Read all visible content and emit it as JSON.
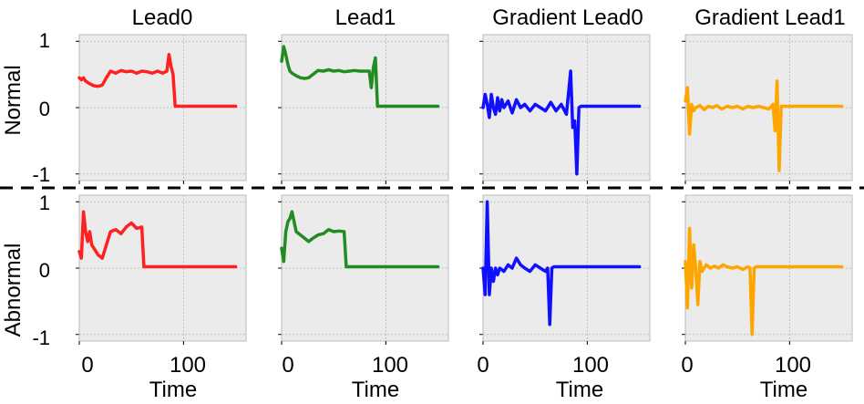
{
  "figure": {
    "col_titles": [
      "Lead0",
      "Lead1",
      "Gradient Lead0",
      "Gradient Lead1"
    ],
    "row_labels": [
      "Normal",
      "Abnormal"
    ],
    "xlabel": "Time",
    "y_ticks": [
      "1",
      "0",
      "-1"
    ],
    "x_ticks": [
      "0",
      "100"
    ],
    "colors": [
      "#ff2020",
      "#228b22",
      "#1010ff",
      "#ffa500"
    ],
    "panel_bg": "#ebebeb"
  },
  "chart_data": [
    {
      "type": "line",
      "title": "Lead0",
      "row": "Normal",
      "color": "#ff2020",
      "xlim": [
        0,
        160
      ],
      "ylim": [
        -1.1,
        1.1
      ],
      "grid": true,
      "series": [
        {
          "x": [
            0,
            2,
            4,
            6,
            8,
            10,
            14,
            18,
            22,
            26,
            30,
            35,
            40,
            45,
            50,
            55,
            60,
            65,
            70,
            75,
            80,
            84,
            86,
            88,
            90,
            92,
            94,
            96,
            100,
            120,
            150
          ],
          "y": [
            0.45,
            0.42,
            0.45,
            0.4,
            0.38,
            0.36,
            0.33,
            0.32,
            0.34,
            0.45,
            0.55,
            0.52,
            0.56,
            0.54,
            0.55,
            0.52,
            0.55,
            0.54,
            0.52,
            0.55,
            0.52,
            0.55,
            0.8,
            0.62,
            0.5,
            0.02,
            0.02,
            0.02,
            0.02,
            0.02,
            0.02
          ]
        }
      ]
    },
    {
      "type": "line",
      "title": "Lead1",
      "row": "Normal",
      "color": "#228b22",
      "xlim": [
        0,
        160
      ],
      "ylim": [
        -1.1,
        1.1
      ],
      "grid": true,
      "series": [
        {
          "x": [
            0,
            2,
            4,
            6,
            8,
            10,
            14,
            18,
            22,
            26,
            30,
            35,
            40,
            45,
            50,
            55,
            60,
            65,
            70,
            75,
            80,
            84,
            86,
            88,
            90,
            92,
            94,
            96,
            100,
            120,
            150
          ],
          "y": [
            0.7,
            0.92,
            0.8,
            0.65,
            0.55,
            0.52,
            0.48,
            0.45,
            0.44,
            0.45,
            0.5,
            0.56,
            0.55,
            0.57,
            0.55,
            0.56,
            0.54,
            0.55,
            0.56,
            0.55,
            0.55,
            0.55,
            0.3,
            0.6,
            0.75,
            0.02,
            0.02,
            0.02,
            0.02,
            0.02,
            0.02
          ]
        }
      ]
    },
    {
      "type": "line",
      "title": "Gradient Lead0",
      "row": "Normal",
      "color": "#1010ff",
      "xlim": [
        0,
        160
      ],
      "ylim": [
        -1.1,
        1.1
      ],
      "grid": true,
      "series": [
        {
          "x": [
            0,
            2,
            4,
            6,
            8,
            10,
            12,
            14,
            16,
            18,
            20,
            24,
            28,
            32,
            36,
            40,
            45,
            50,
            55,
            60,
            65,
            70,
            75,
            80,
            84,
            86,
            88,
            90,
            92,
            94,
            96,
            100,
            120,
            150
          ],
          "y": [
            0.0,
            0.2,
            0.05,
            -0.15,
            0.2,
            0.0,
            -0.1,
            0.15,
            -0.05,
            0.12,
            0.0,
            0.1,
            -0.08,
            0.12,
            0.0,
            0.05,
            -0.05,
            0.05,
            0.0,
            -0.05,
            0.08,
            -0.05,
            0.05,
            -0.1,
            0.55,
            -0.3,
            -0.2,
            -1.0,
            0.0,
            0.02,
            0.02,
            0.02,
            0.02,
            0.02
          ]
        }
      ]
    },
    {
      "type": "line",
      "title": "Gradient Lead1",
      "row": "Normal",
      "color": "#ffa500",
      "xlim": [
        0,
        160
      ],
      "ylim": [
        -1.1,
        1.1
      ],
      "grid": true,
      "series": [
        {
          "x": [
            0,
            2,
            4,
            6,
            8,
            10,
            14,
            18,
            22,
            26,
            30,
            35,
            40,
            45,
            50,
            55,
            60,
            65,
            70,
            75,
            80,
            84,
            86,
            88,
            90,
            92,
            94,
            96,
            100,
            120,
            150
          ],
          "y": [
            0.1,
            0.3,
            -0.4,
            0.05,
            -0.05,
            0.0,
            0.03,
            -0.03,
            0.02,
            0.0,
            0.03,
            -0.02,
            0.02,
            0.0,
            0.02,
            -0.02,
            0.02,
            0.0,
            0.02,
            0.0,
            -0.02,
            0.05,
            -0.35,
            0.4,
            -0.95,
            0.02,
            0.02,
            0.02,
            0.02,
            0.02,
            0.02
          ]
        }
      ]
    },
    {
      "type": "line",
      "title": "Lead0",
      "row": "Abnormal",
      "color": "#ff2020",
      "xlim": [
        0,
        160
      ],
      "ylim": [
        -1.1,
        1.1
      ],
      "grid": true,
      "series": [
        {
          "x": [
            0,
            2,
            4,
            6,
            8,
            10,
            12,
            14,
            18,
            22,
            26,
            30,
            35,
            40,
            45,
            50,
            55,
            60,
            62,
            64,
            66,
            70,
            80,
            100,
            150
          ],
          "y": [
            0.25,
            0.15,
            0.85,
            0.55,
            0.4,
            0.55,
            0.35,
            0.3,
            0.2,
            0.15,
            0.35,
            0.55,
            0.58,
            0.52,
            0.62,
            0.68,
            0.6,
            0.62,
            0.02,
            0.02,
            0.02,
            0.02,
            0.02,
            0.02,
            0.02
          ]
        }
      ]
    },
    {
      "type": "line",
      "title": "Lead1",
      "row": "Abnormal",
      "color": "#228b22",
      "xlim": [
        0,
        160
      ],
      "ylim": [
        -1.1,
        1.1
      ],
      "grid": true,
      "series": [
        {
          "x": [
            0,
            2,
            4,
            6,
            8,
            10,
            14,
            18,
            22,
            26,
            30,
            35,
            40,
            45,
            50,
            55,
            60,
            62,
            64,
            66,
            70,
            80,
            100,
            150
          ],
          "y": [
            0.3,
            0.1,
            0.55,
            0.7,
            0.75,
            0.85,
            0.55,
            0.5,
            0.45,
            0.4,
            0.45,
            0.5,
            0.52,
            0.58,
            0.55,
            0.56,
            0.55,
            0.02,
            0.02,
            0.02,
            0.02,
            0.02,
            0.02,
            0.02
          ]
        }
      ]
    },
    {
      "type": "line",
      "title": "Gradient Lead0",
      "row": "Abnormal",
      "color": "#1010ff",
      "xlim": [
        0,
        160
      ],
      "ylim": [
        -1.1,
        1.1
      ],
      "grid": true,
      "series": [
        {
          "x": [
            0,
            2,
            4,
            6,
            8,
            10,
            12,
            14,
            16,
            20,
            24,
            28,
            32,
            36,
            40,
            45,
            50,
            55,
            60,
            62,
            64,
            66,
            68,
            70,
            100,
            150
          ],
          "y": [
            0.0,
            -0.4,
            1.0,
            -0.4,
            0.0,
            -0.2,
            0.0,
            -0.1,
            0.0,
            -0.05,
            0.05,
            0.0,
            0.15,
            0.05,
            0.0,
            -0.05,
            0.05,
            0.0,
            -0.05,
            0.0,
            -0.85,
            0.0,
            0.02,
            0.02,
            0.02,
            0.02
          ]
        }
      ]
    },
    {
      "type": "line",
      "title": "Gradient Lead1",
      "row": "Abnormal",
      "color": "#ffa500",
      "xlim": [
        0,
        160
      ],
      "ylim": [
        -1.1,
        1.1
      ],
      "grid": true,
      "series": [
        {
          "x": [
            0,
            2,
            4,
            6,
            8,
            10,
            12,
            14,
            16,
            20,
            24,
            28,
            32,
            36,
            40,
            45,
            50,
            55,
            60,
            62,
            64,
            66,
            68,
            70,
            100,
            150
          ],
          "y": [
            0.1,
            -0.6,
            0.6,
            -0.3,
            0.35,
            0.0,
            -0.55,
            0.1,
            -0.05,
            0.05,
            0.0,
            0.03,
            0.0,
            0.05,
            0.02,
            0.0,
            0.02,
            -0.02,
            0.02,
            0.0,
            -1.0,
            0.0,
            0.02,
            0.02,
            0.02,
            0.02
          ]
        }
      ]
    }
  ]
}
